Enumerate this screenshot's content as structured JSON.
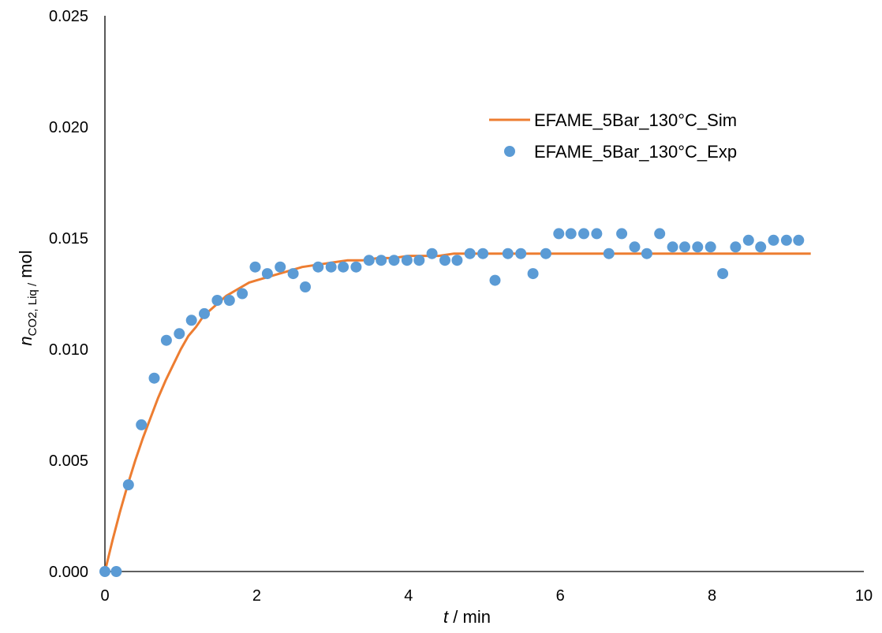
{
  "chart_data": {
    "type": "line+scatter",
    "xlabel": {
      "italic": "t",
      "rest": " / min"
    },
    "ylabel": {
      "italic": "n",
      "sub": "CO2, Liq /",
      "rest": " mol"
    },
    "xlim": [
      0,
      10
    ],
    "ylim": [
      0,
      0.025
    ],
    "xticks": [
      "0",
      "2",
      "4",
      "6",
      "8",
      "10"
    ],
    "yticks": [
      "0.000",
      "0.005",
      "0.010",
      "0.015",
      "0.020",
      "0.025"
    ],
    "grid": false,
    "legend_position": "top-right",
    "colors": {
      "sim": "#ED7D31",
      "exp": "#5B9BD5"
    },
    "series": [
      {
        "name": "EFAME_5Bar_130°C_Sim",
        "kind": "line",
        "x": [
          0,
          0.05,
          0.1,
          0.2,
          0.3,
          0.4,
          0.5,
          0.6,
          0.7,
          0.8,
          0.9,
          1.0,
          1.1,
          1.2,
          1.3,
          1.4,
          1.5,
          1.6,
          1.7,
          1.8,
          1.9,
          2.0,
          2.2,
          2.4,
          2.6,
          2.8,
          3.0,
          3.2,
          3.4,
          3.6,
          3.8,
          4.0,
          4.2,
          4.4,
          4.6,
          5.0,
          6.0,
          7.0,
          7.2,
          7.4,
          8.0,
          9.0,
          9.3
        ],
        "y": [
          0,
          0.0007,
          0.0014,
          0.0027,
          0.0039,
          0.005,
          0.006,
          0.0069,
          0.0078,
          0.0086,
          0.0093,
          0.01,
          0.0106,
          0.011,
          0.0115,
          0.0118,
          0.0121,
          0.0124,
          0.0126,
          0.0128,
          0.013,
          0.0131,
          0.0133,
          0.0135,
          0.0137,
          0.0138,
          0.0139,
          0.014,
          0.014,
          0.0141,
          0.0141,
          0.0142,
          0.0142,
          0.0142,
          0.0143,
          0.0143,
          0.0143,
          0.0143,
          0.0143,
          0.0143,
          0.0143,
          0.0143,
          0.0143
        ]
      },
      {
        "name": "EFAME_5Bar_130°C_Exp",
        "kind": "scatter",
        "x": [
          0,
          0.15,
          0.31,
          0.48,
          0.65,
          0.81,
          0.98,
          1.14,
          1.31,
          1.48,
          1.64,
          1.81,
          1.98,
          2.14,
          2.31,
          2.48,
          2.64,
          2.81,
          2.98,
          3.14,
          3.31,
          3.48,
          3.64,
          3.81,
          3.98,
          4.14,
          4.31,
          4.48,
          4.64,
          4.81,
          4.98,
          5.14,
          5.31,
          5.48,
          5.64,
          5.81,
          5.98,
          6.14,
          6.31,
          6.48,
          6.64,
          6.81,
          6.98,
          7.14,
          7.31,
          7.48,
          7.64,
          7.81,
          7.98,
          8.14,
          8.31,
          8.48,
          8.64,
          8.81,
          8.98,
          9.14
        ],
        "y": [
          0,
          0,
          0.0039,
          0.0066,
          0.0087,
          0.0104,
          0.0107,
          0.0113,
          0.0116,
          0.0122,
          0.0122,
          0.0125,
          0.0137,
          0.0134,
          0.0137,
          0.0134,
          0.0128,
          0.0137,
          0.0137,
          0.0137,
          0.0137,
          0.014,
          0.014,
          0.014,
          0.014,
          0.014,
          0.0143,
          0.014,
          0.014,
          0.0143,
          0.0143,
          0.0131,
          0.0143,
          0.0143,
          0.0134,
          0.0143,
          0.0152,
          0.0152,
          0.0152,
          0.0152,
          0.0143,
          0.0152,
          0.0146,
          0.0143,
          0.0152,
          0.0146,
          0.0146,
          0.0146,
          0.0146,
          0.0134,
          0.0146,
          0.0149,
          0.0146,
          0.0149,
          0.0149,
          0.0149
        ]
      }
    ]
  }
}
